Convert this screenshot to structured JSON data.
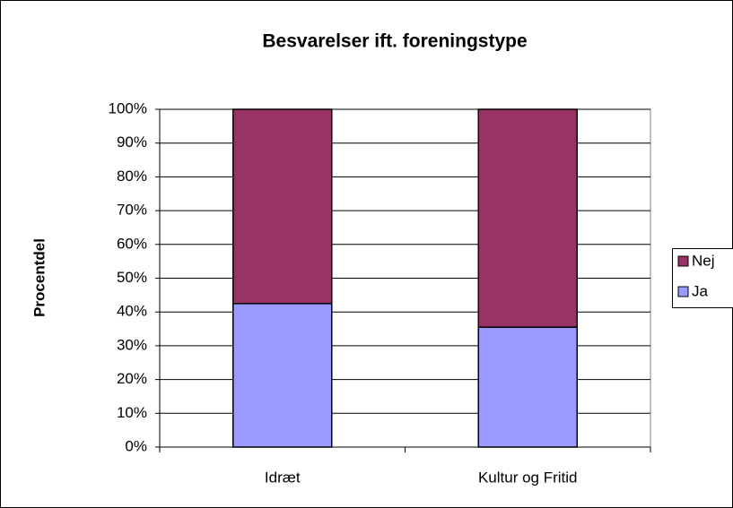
{
  "chart_data": {
    "type": "bar",
    "stacked": true,
    "title": "Besvarelser ift. foreningstype",
    "y_label": "Procentdel",
    "categories": [
      "Idræt",
      "Kultur og Fritid"
    ],
    "series": [
      {
        "name": "Ja",
        "color": "#9999ff",
        "values": [
          42.5,
          35.5
        ]
      },
      {
        "name": "Nej",
        "color": "#993366",
        "values": [
          57.5,
          64.5
        ]
      }
    ],
    "ylim": [
      0,
      100
    ],
    "yticks": [
      {
        "value": 0,
        "label": "0%"
      },
      {
        "value": 10,
        "label": "10%"
      },
      {
        "value": 20,
        "label": "20%"
      },
      {
        "value": 30,
        "label": "30%"
      },
      {
        "value": 40,
        "label": "40%"
      },
      {
        "value": 50,
        "label": "50%"
      },
      {
        "value": 60,
        "label": "60%"
      },
      {
        "value": 70,
        "label": "70%"
      },
      {
        "value": 80,
        "label": "80%"
      },
      {
        "value": 90,
        "label": "90%"
      },
      {
        "value": 100,
        "label": "100%"
      }
    ],
    "grid": true,
    "legend": "right"
  }
}
